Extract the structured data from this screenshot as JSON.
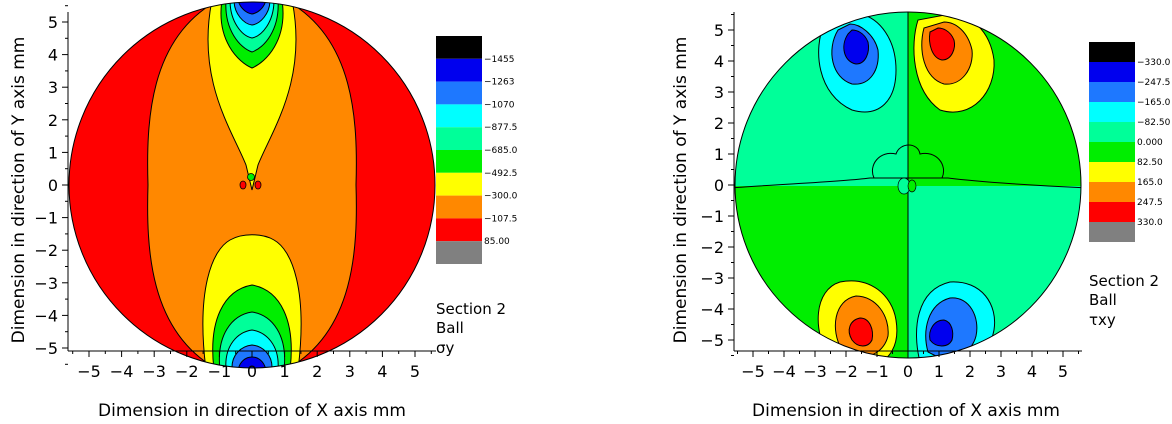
{
  "chart_data": [
    {
      "type": "contour",
      "xlabel": "Dimension in direction of X axis  mm",
      "ylabel": "Dimension in direction of Y axis  mm",
      "x_ticks": [
        -5,
        -4,
        -3,
        -2,
        -1,
        0,
        1,
        2,
        3,
        4,
        5
      ],
      "y_ticks": [
        -5,
        -4,
        -3,
        -2,
        -1,
        0,
        1,
        2,
        3,
        4,
        5
      ],
      "xlim": [
        -5.6,
        5.6
      ],
      "ylim": [
        -5.6,
        5.6
      ],
      "legend": {
        "placement": "right",
        "colors": [
          "#000000",
          "#0000ee",
          "#1e78ff",
          "#00ffff",
          "#00ff99",
          "#00ee00",
          "#ffff00",
          "#ff8800",
          "#ff0000",
          "#808080"
        ],
        "levels": [
          "-1455",
          "-1263",
          "-1070",
          "-877.5",
          "-685.0",
          "-492.5",
          "-300.0",
          "-107.5",
          "85.00"
        ]
      },
      "caption": [
        "Section 2",
        "Ball",
        "σy"
      ]
    },
    {
      "type": "contour",
      "xlabel": "Dimension in direction of X axis  mm",
      "ylabel": "Dimension in direction of Y axis  mm",
      "x_ticks": [
        -5,
        -4,
        -3,
        -2,
        -1,
        0,
        1,
        2,
        3,
        4,
        5
      ],
      "y_ticks": [
        -5,
        -4,
        -3,
        -2,
        -1,
        0,
        1,
        2,
        3,
        4,
        5
      ],
      "xlim": [
        -5.6,
        5.6
      ],
      "ylim": [
        -5.6,
        5.6
      ],
      "legend": {
        "placement": "right",
        "colors": [
          "#000000",
          "#0000ee",
          "#1e78ff",
          "#00ffff",
          "#00ff99",
          "#00ee00",
          "#ffff00",
          "#ff8800",
          "#ff0000",
          "#808080"
        ],
        "levels": [
          "-330.0",
          "-247.5",
          "-165.0",
          "-82.50",
          "0.000",
          "82.50",
          "165.0",
          "247.5",
          "330.0"
        ]
      },
      "caption": [
        "Section 2",
        "Ball",
        "τxy"
      ]
    }
  ]
}
